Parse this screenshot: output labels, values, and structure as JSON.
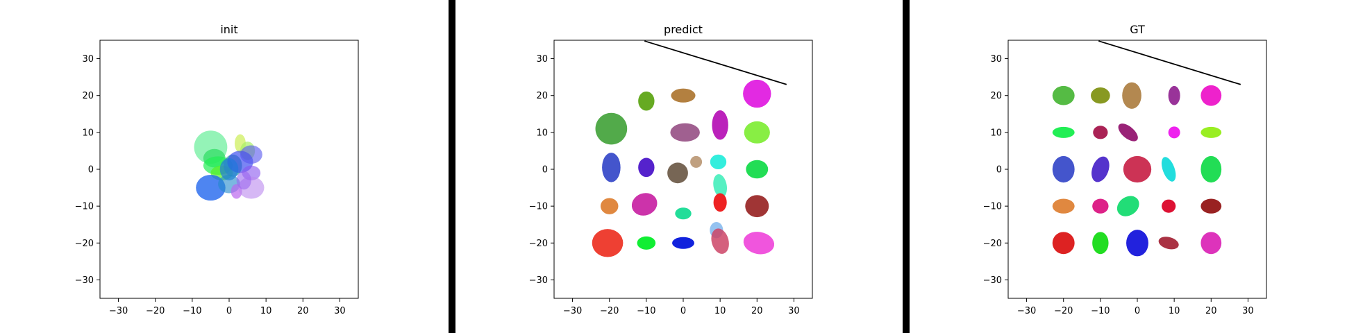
{
  "chart_data": [
    {
      "type": "scatter",
      "title": "init",
      "xlabel": "",
      "ylabel": "",
      "xlim": [
        -35,
        35
      ],
      "ylim": [
        -35,
        35
      ],
      "xticks": [
        -30,
        -20,
        -10,
        0,
        10,
        20,
        30
      ],
      "yticks": [
        30,
        20,
        10,
        0,
        -10,
        -20,
        -30
      ],
      "grid": false,
      "line": null,
      "ellipses": [
        {
          "x": -5,
          "y": 6,
          "rx": 4.5,
          "ry": 4.5,
          "angle": 0,
          "color": "#66ee99",
          "opacity": 0.7
        },
        {
          "x": -4,
          "y": 3,
          "rx": 3.0,
          "ry": 2.5,
          "angle": 0,
          "color": "#33dd66",
          "opacity": 0.75
        },
        {
          "x": 3,
          "y": 7,
          "rx": 1.5,
          "ry": 2.5,
          "angle": 0,
          "color": "#ccee55",
          "opacity": 0.7
        },
        {
          "x": 5,
          "y": 5,
          "rx": 2.0,
          "ry": 2.5,
          "angle": 0,
          "color": "#aaee66",
          "opacity": 0.7
        },
        {
          "x": -3,
          "y": 1,
          "rx": 4.0,
          "ry": 2.5,
          "angle": 0,
          "color": "#22ee55",
          "opacity": 0.7
        },
        {
          "x": -2,
          "y": -1,
          "rx": 3.0,
          "ry": 2.0,
          "angle": 0,
          "color": "#55ee22",
          "opacity": 0.7
        },
        {
          "x": 1,
          "y": 1,
          "rx": 2.5,
          "ry": 3.0,
          "angle": 0,
          "color": "#33aa99",
          "opacity": 0.7
        },
        {
          "x": 3,
          "y": 2,
          "rx": 3.5,
          "ry": 3.0,
          "angle": 0,
          "color": "#3344ee",
          "opacity": 0.65
        },
        {
          "x": 6,
          "y": 4,
          "rx": 3.0,
          "ry": 2.5,
          "angle": 0,
          "color": "#5555ee",
          "opacity": 0.6
        },
        {
          "x": 0,
          "y": 0,
          "rx": 2.5,
          "ry": 3.0,
          "angle": 0,
          "color": "#2277dd",
          "opacity": 0.7
        },
        {
          "x": 6,
          "y": -1,
          "rx": 2.5,
          "ry": 2.0,
          "angle": 0,
          "color": "#8855ee",
          "opacity": 0.6
        },
        {
          "x": -5,
          "y": -5,
          "rx": 4.0,
          "ry": 3.5,
          "angle": 0,
          "color": "#2266ee",
          "opacity": 0.8
        },
        {
          "x": 0,
          "y": -4,
          "rx": 3.0,
          "ry": 2.5,
          "angle": 0,
          "color": "#2288cc",
          "opacity": 0.6
        },
        {
          "x": 2,
          "y": -6,
          "rx": 1.5,
          "ry": 2.0,
          "angle": 0,
          "color": "#bb66ee",
          "opacity": 0.7
        },
        {
          "x": 6,
          "y": -5,
          "rx": 3.5,
          "ry": 3.0,
          "angle": 0,
          "color": "#bb88ee",
          "opacity": 0.6
        },
        {
          "x": 4,
          "y": -3,
          "rx": 2.0,
          "ry": 2.5,
          "angle": 0,
          "color": "#9966ee",
          "opacity": 0.6
        }
      ]
    },
    {
      "type": "scatter",
      "title": "predict",
      "xlabel": "",
      "ylabel": "",
      "xlim": [
        -35,
        35
      ],
      "ylim": [
        -35,
        35
      ],
      "xticks": [
        -30,
        -20,
        -10,
        0,
        10,
        20,
        30
      ],
      "yticks": [
        30,
        20,
        10,
        0,
        -10,
        -20,
        -30
      ],
      "grid": false,
      "line": {
        "x1": -10.5,
        "y1": 34.8,
        "x2": 28,
        "y2": 23
      },
      "ellipses": [
        {
          "x": -10,
          "y": 18.5,
          "rx": 2.2,
          "ry": 2.6,
          "angle": 0,
          "color": "#66aa22",
          "opacity": 1
        },
        {
          "x": 0,
          "y": 20,
          "rx": 3.3,
          "ry": 1.9,
          "angle": 0,
          "color": "#b38040",
          "opacity": 1
        },
        {
          "x": 20,
          "y": 20.5,
          "rx": 3.8,
          "ry": 3.8,
          "angle": 0,
          "color": "#e22ae2",
          "opacity": 1
        },
        {
          "x": -19.5,
          "y": 11,
          "rx": 4.3,
          "ry": 4.3,
          "angle": 0,
          "color": "#52aa4a",
          "opacity": 1
        },
        {
          "x": 0.5,
          "y": 10,
          "rx": 4.0,
          "ry": 2.5,
          "angle": 0,
          "color": "#a06090",
          "opacity": 1
        },
        {
          "x": 10,
          "y": 12,
          "rx": 2.2,
          "ry": 4.0,
          "angle": 0,
          "color": "#bb22bb",
          "opacity": 1
        },
        {
          "x": 20,
          "y": 10,
          "rx": 3.5,
          "ry": 3.0,
          "angle": 0,
          "color": "#88ee44",
          "opacity": 1
        },
        {
          "x": -19.5,
          "y": 0.5,
          "rx": 2.5,
          "ry": 4.0,
          "angle": 0,
          "color": "#4455cc",
          "opacity": 1
        },
        {
          "x": -10,
          "y": 0.5,
          "rx": 2.2,
          "ry": 2.6,
          "angle": 0,
          "color": "#5522cc",
          "opacity": 1
        },
        {
          "x": -1.5,
          "y": -1,
          "rx": 2.8,
          "ry": 2.8,
          "angle": 0,
          "color": "#776655",
          "opacity": 1
        },
        {
          "x": 3.5,
          "y": 2,
          "rx": 1.6,
          "ry": 1.6,
          "angle": 0,
          "color": "#c0a080",
          "opacity": 1
        },
        {
          "x": 9.5,
          "y": 2,
          "rx": 2.2,
          "ry": 2.0,
          "angle": 0,
          "color": "#33eedd",
          "opacity": 1
        },
        {
          "x": 10,
          "y": -4.5,
          "rx": 1.8,
          "ry": 3.2,
          "angle": 10,
          "color": "#44eebb",
          "opacity": 0.9
        },
        {
          "x": 20,
          "y": 0,
          "rx": 3.0,
          "ry": 2.5,
          "angle": 0,
          "color": "#22dd55",
          "opacity": 1
        },
        {
          "x": -20,
          "y": -10,
          "rx": 2.4,
          "ry": 2.2,
          "angle": 0,
          "color": "#e08840",
          "opacity": 1
        },
        {
          "x": -10.5,
          "y": -9.5,
          "rx": 3.5,
          "ry": 3.0,
          "angle": 20,
          "color": "#cc33aa",
          "opacity": 1
        },
        {
          "x": 0,
          "y": -12,
          "rx": 2.2,
          "ry": 1.6,
          "angle": 0,
          "color": "#22dd99",
          "opacity": 1
        },
        {
          "x": 10,
          "y": -9,
          "rx": 1.8,
          "ry": 2.5,
          "angle": 0,
          "color": "#ee2222",
          "opacity": 1
        },
        {
          "x": 20,
          "y": -10,
          "rx": 3.2,
          "ry": 3.0,
          "angle": 0,
          "color": "#a03535",
          "opacity": 1
        },
        {
          "x": -20.5,
          "y": -20,
          "rx": 4.2,
          "ry": 3.8,
          "angle": 0,
          "color": "#ee4033",
          "opacity": 1
        },
        {
          "x": -10,
          "y": -20,
          "rx": 2.5,
          "ry": 1.8,
          "angle": 0,
          "color": "#11ee33",
          "opacity": 1
        },
        {
          "x": 0,
          "y": -20,
          "rx": 3.0,
          "ry": 1.6,
          "angle": 0,
          "color": "#1122dd",
          "opacity": 1
        },
        {
          "x": 9,
          "y": -16.5,
          "rx": 1.8,
          "ry": 2.2,
          "angle": 0,
          "color": "#88bbee",
          "opacity": 0.9
        },
        {
          "x": 10,
          "y": -19.5,
          "rx": 2.3,
          "ry": 3.5,
          "angle": 15,
          "color": "#cc4466",
          "opacity": 0.85
        },
        {
          "x": 20.5,
          "y": -20,
          "rx": 4.2,
          "ry": 3.0,
          "angle": -10,
          "color": "#f055dd",
          "opacity": 1
        }
      ]
    },
    {
      "type": "scatter",
      "title": "GT",
      "xlabel": "",
      "ylabel": "",
      "xlim": [
        -35,
        35
      ],
      "ylim": [
        -35,
        35
      ],
      "xticks": [
        -30,
        -20,
        -10,
        0,
        10,
        20,
        30
      ],
      "yticks": [
        30,
        20,
        10,
        0,
        -10,
        -20,
        -30
      ],
      "grid": false,
      "line": {
        "x1": -10.5,
        "y1": 34.8,
        "x2": 28,
        "y2": 23
      },
      "ellipses": [
        {
          "x": -20,
          "y": 20,
          "rx": 3.0,
          "ry": 2.6,
          "angle": 0,
          "color": "#55bb44",
          "opacity": 1
        },
        {
          "x": -10,
          "y": 20,
          "rx": 2.6,
          "ry": 2.2,
          "angle": 0,
          "color": "#889922",
          "opacity": 1
        },
        {
          "x": -1.5,
          "y": 20,
          "rx": 2.6,
          "ry": 3.6,
          "angle": 0,
          "color": "#b38850",
          "opacity": 1
        },
        {
          "x": 10,
          "y": 20,
          "rx": 1.6,
          "ry": 2.6,
          "angle": 0,
          "color": "#993399",
          "opacity": 1
        },
        {
          "x": 20,
          "y": 20,
          "rx": 2.8,
          "ry": 2.8,
          "angle": 0,
          "color": "#ee22cc",
          "opacity": 1
        },
        {
          "x": -20,
          "y": 10,
          "rx": 3.0,
          "ry": 1.5,
          "angle": 0,
          "color": "#22ee55",
          "opacity": 1
        },
        {
          "x": -10,
          "y": 10,
          "rx": 2.0,
          "ry": 1.8,
          "angle": 0,
          "color": "#aa2255",
          "opacity": 1
        },
        {
          "x": -2.5,
          "y": 10,
          "rx": 1.6,
          "ry": 3.2,
          "angle": 50,
          "color": "#992277",
          "opacity": 1
        },
        {
          "x": 10,
          "y": 10,
          "rx": 1.6,
          "ry": 1.6,
          "angle": 0,
          "color": "#ee22ee",
          "opacity": 1
        },
        {
          "x": 20,
          "y": 10,
          "rx": 2.8,
          "ry": 1.5,
          "angle": 0,
          "color": "#99ee22",
          "opacity": 1
        },
        {
          "x": -20,
          "y": 0,
          "rx": 3.0,
          "ry": 3.6,
          "angle": 0,
          "color": "#4455cc",
          "opacity": 1
        },
        {
          "x": -10,
          "y": 0,
          "rx": 2.2,
          "ry": 3.6,
          "angle": -20,
          "color": "#5533cc",
          "opacity": 1
        },
        {
          "x": 0,
          "y": 0,
          "rx": 3.8,
          "ry": 3.6,
          "angle": 0,
          "color": "#cc3355",
          "opacity": 1
        },
        {
          "x": 8.5,
          "y": 0,
          "rx": 1.6,
          "ry": 3.5,
          "angle": 20,
          "color": "#22dddd",
          "opacity": 1
        },
        {
          "x": 20,
          "y": 0,
          "rx": 2.8,
          "ry": 3.6,
          "angle": 0,
          "color": "#22dd55",
          "opacity": 1
        },
        {
          "x": -20,
          "y": -10,
          "rx": 3.0,
          "ry": 2.0,
          "angle": 0,
          "color": "#e08840",
          "opacity": 1
        },
        {
          "x": -10,
          "y": -10,
          "rx": 2.2,
          "ry": 2.0,
          "angle": 0,
          "color": "#dd2288",
          "opacity": 1
        },
        {
          "x": -2.5,
          "y": -10,
          "rx": 3.2,
          "ry": 2.5,
          "angle": 35,
          "color": "#22dd77",
          "opacity": 1
        },
        {
          "x": 8.5,
          "y": -10,
          "rx": 1.9,
          "ry": 1.8,
          "angle": 0,
          "color": "#dd1133",
          "opacity": 1
        },
        {
          "x": 20,
          "y": -10,
          "rx": 2.8,
          "ry": 2.0,
          "angle": 0,
          "color": "#992222",
          "opacity": 1
        },
        {
          "x": -20,
          "y": -20,
          "rx": 3.0,
          "ry": 3.0,
          "angle": 0,
          "color": "#dd2222",
          "opacity": 1
        },
        {
          "x": -10,
          "y": -20,
          "rx": 2.2,
          "ry": 3.0,
          "angle": 0,
          "color": "#22dd22",
          "opacity": 1
        },
        {
          "x": 0,
          "y": -20,
          "rx": 3.0,
          "ry": 3.6,
          "angle": 0,
          "color": "#2222dd",
          "opacity": 1
        },
        {
          "x": 8.5,
          "y": -20,
          "rx": 2.8,
          "ry": 1.6,
          "angle": -15,
          "color": "#aa3344",
          "opacity": 1
        },
        {
          "x": 20,
          "y": -20,
          "rx": 2.8,
          "ry": 3.0,
          "angle": 0,
          "color": "#dd33bb",
          "opacity": 1
        }
      ]
    }
  ],
  "separators": [
    {
      "color": "#000000"
    },
    {
      "color": "#000000"
    }
  ]
}
